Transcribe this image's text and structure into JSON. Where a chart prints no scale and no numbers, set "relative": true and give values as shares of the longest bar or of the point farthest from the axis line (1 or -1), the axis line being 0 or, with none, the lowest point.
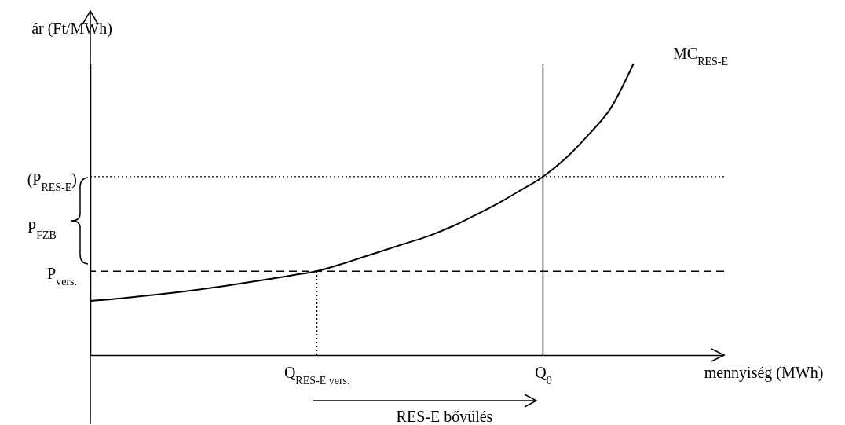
{
  "chart_data": {
    "type": "line",
    "relative": true,
    "xlabel": "mennyiség (MWh)",
    "ylabel": "ár (Ft/MWh)",
    "categories": [
      null,
      null,
      null,
      null,
      null,
      null,
      null,
      null,
      null,
      null,
      "Q$_{RES-E vers.}$",
      null,
      null,
      null,
      null,
      null,
      null,
      null,
      null,
      null,
      "Q$_{0}$",
      null,
      null,
      null,
      null,
      null,
      null,
      null,
      null
    ],
    "series": [
      {
        "name": "MC$_{RES-E}$",
        "color": "#000000",
        "values": [
          0.186,
          0.192,
          0.2,
          0.208,
          0.217,
          0.227,
          0.238,
          0.25,
          0.262,
          0.275,
          0.288,
          0.31,
          0.335,
          0.36,
          0.385,
          0.41,
          0.442,
          0.48,
          0.52,
          0.565,
          0.612,
          0.675,
          0.755,
          0.848,
          1,
          null,
          null,
          null,
          null
        ]
      },
      {
        "type": "line",
        "line_style": "dotted",
        "color": "#000000",
        "x": [
          "Q$_{RES-E vers.}$",
          "Q$_{RES-E vers.}$"
        ],
        "values": [
          0,
          0.288
        ]
      }
    ],
    "ref_lines": [
      {
        "axis": "y",
        "value": 0.612,
        "label": "(P$_{RES-E}$)",
        "line_style": "dotted",
        "color": "#000000"
      },
      {
        "axis": "y",
        "value": 0.288,
        "label": "P$_{vers.}$",
        "line_style": "dashed",
        "color": "#000000"
      },
      {
        "axis": "x",
        "value": "Q$_{0}$",
        "line_style": "solid",
        "color": "#000000"
      }
    ],
    "annotations": [
      "P$_{FZB}$",
      "RES-E bővülés"
    ],
    "grid": false,
    "marker": "none",
    "line_style": "solid"
  }
}
